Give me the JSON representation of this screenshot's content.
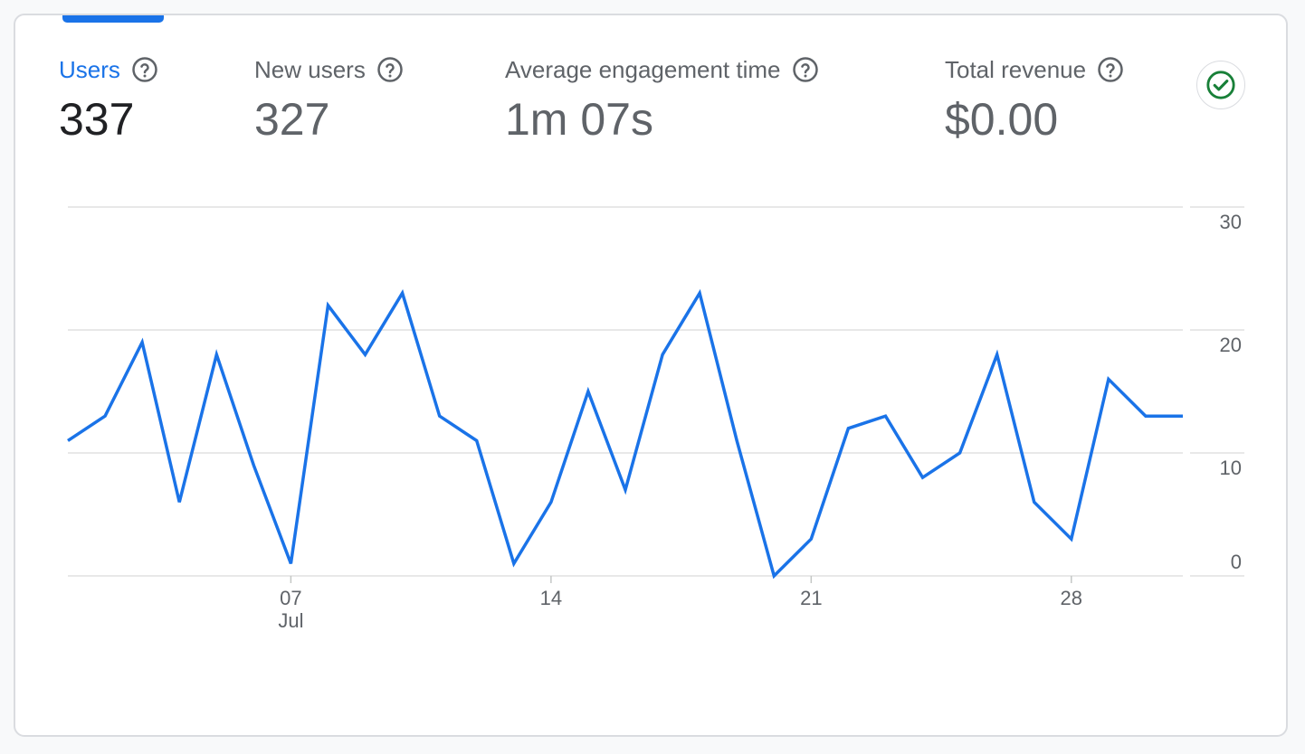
{
  "metrics": [
    {
      "label": "Users",
      "value": "337",
      "active": true
    },
    {
      "label": "New users",
      "value": "327",
      "active": false
    },
    {
      "label": "Average engagement time",
      "value": "1m 07s",
      "active": false
    },
    {
      "label": "Total revenue",
      "value": "$0.00",
      "active": false
    }
  ],
  "icons": {
    "help": "help-circle-icon",
    "status": "check-circle-icon"
  },
  "colors": {
    "accent": "#1a73e8",
    "status_green": "#188038",
    "grid": "#dadce0"
  },
  "chart_data": {
    "type": "line",
    "series": [
      {
        "values": [
          11,
          13,
          19,
          6,
          18,
          9,
          1,
          22,
          18,
          23,
          13,
          11,
          1,
          6,
          15,
          7,
          18,
          23,
          11,
          0,
          3,
          12,
          13,
          8,
          10,
          18,
          6,
          3,
          16,
          13,
          13
        ]
      }
    ],
    "x_ticks": [
      {
        "index": 6,
        "label": "07",
        "sublabel": "Jul"
      },
      {
        "index": 13,
        "label": "14",
        "sublabel": ""
      },
      {
        "index": 20,
        "label": "21",
        "sublabel": ""
      },
      {
        "index": 27,
        "label": "28",
        "sublabel": ""
      }
    ],
    "y_ticks": [
      "0",
      "10",
      "20",
      "30"
    ],
    "ylim": [
      0,
      30
    ],
    "grid": true,
    "y_axis_side": "right"
  }
}
